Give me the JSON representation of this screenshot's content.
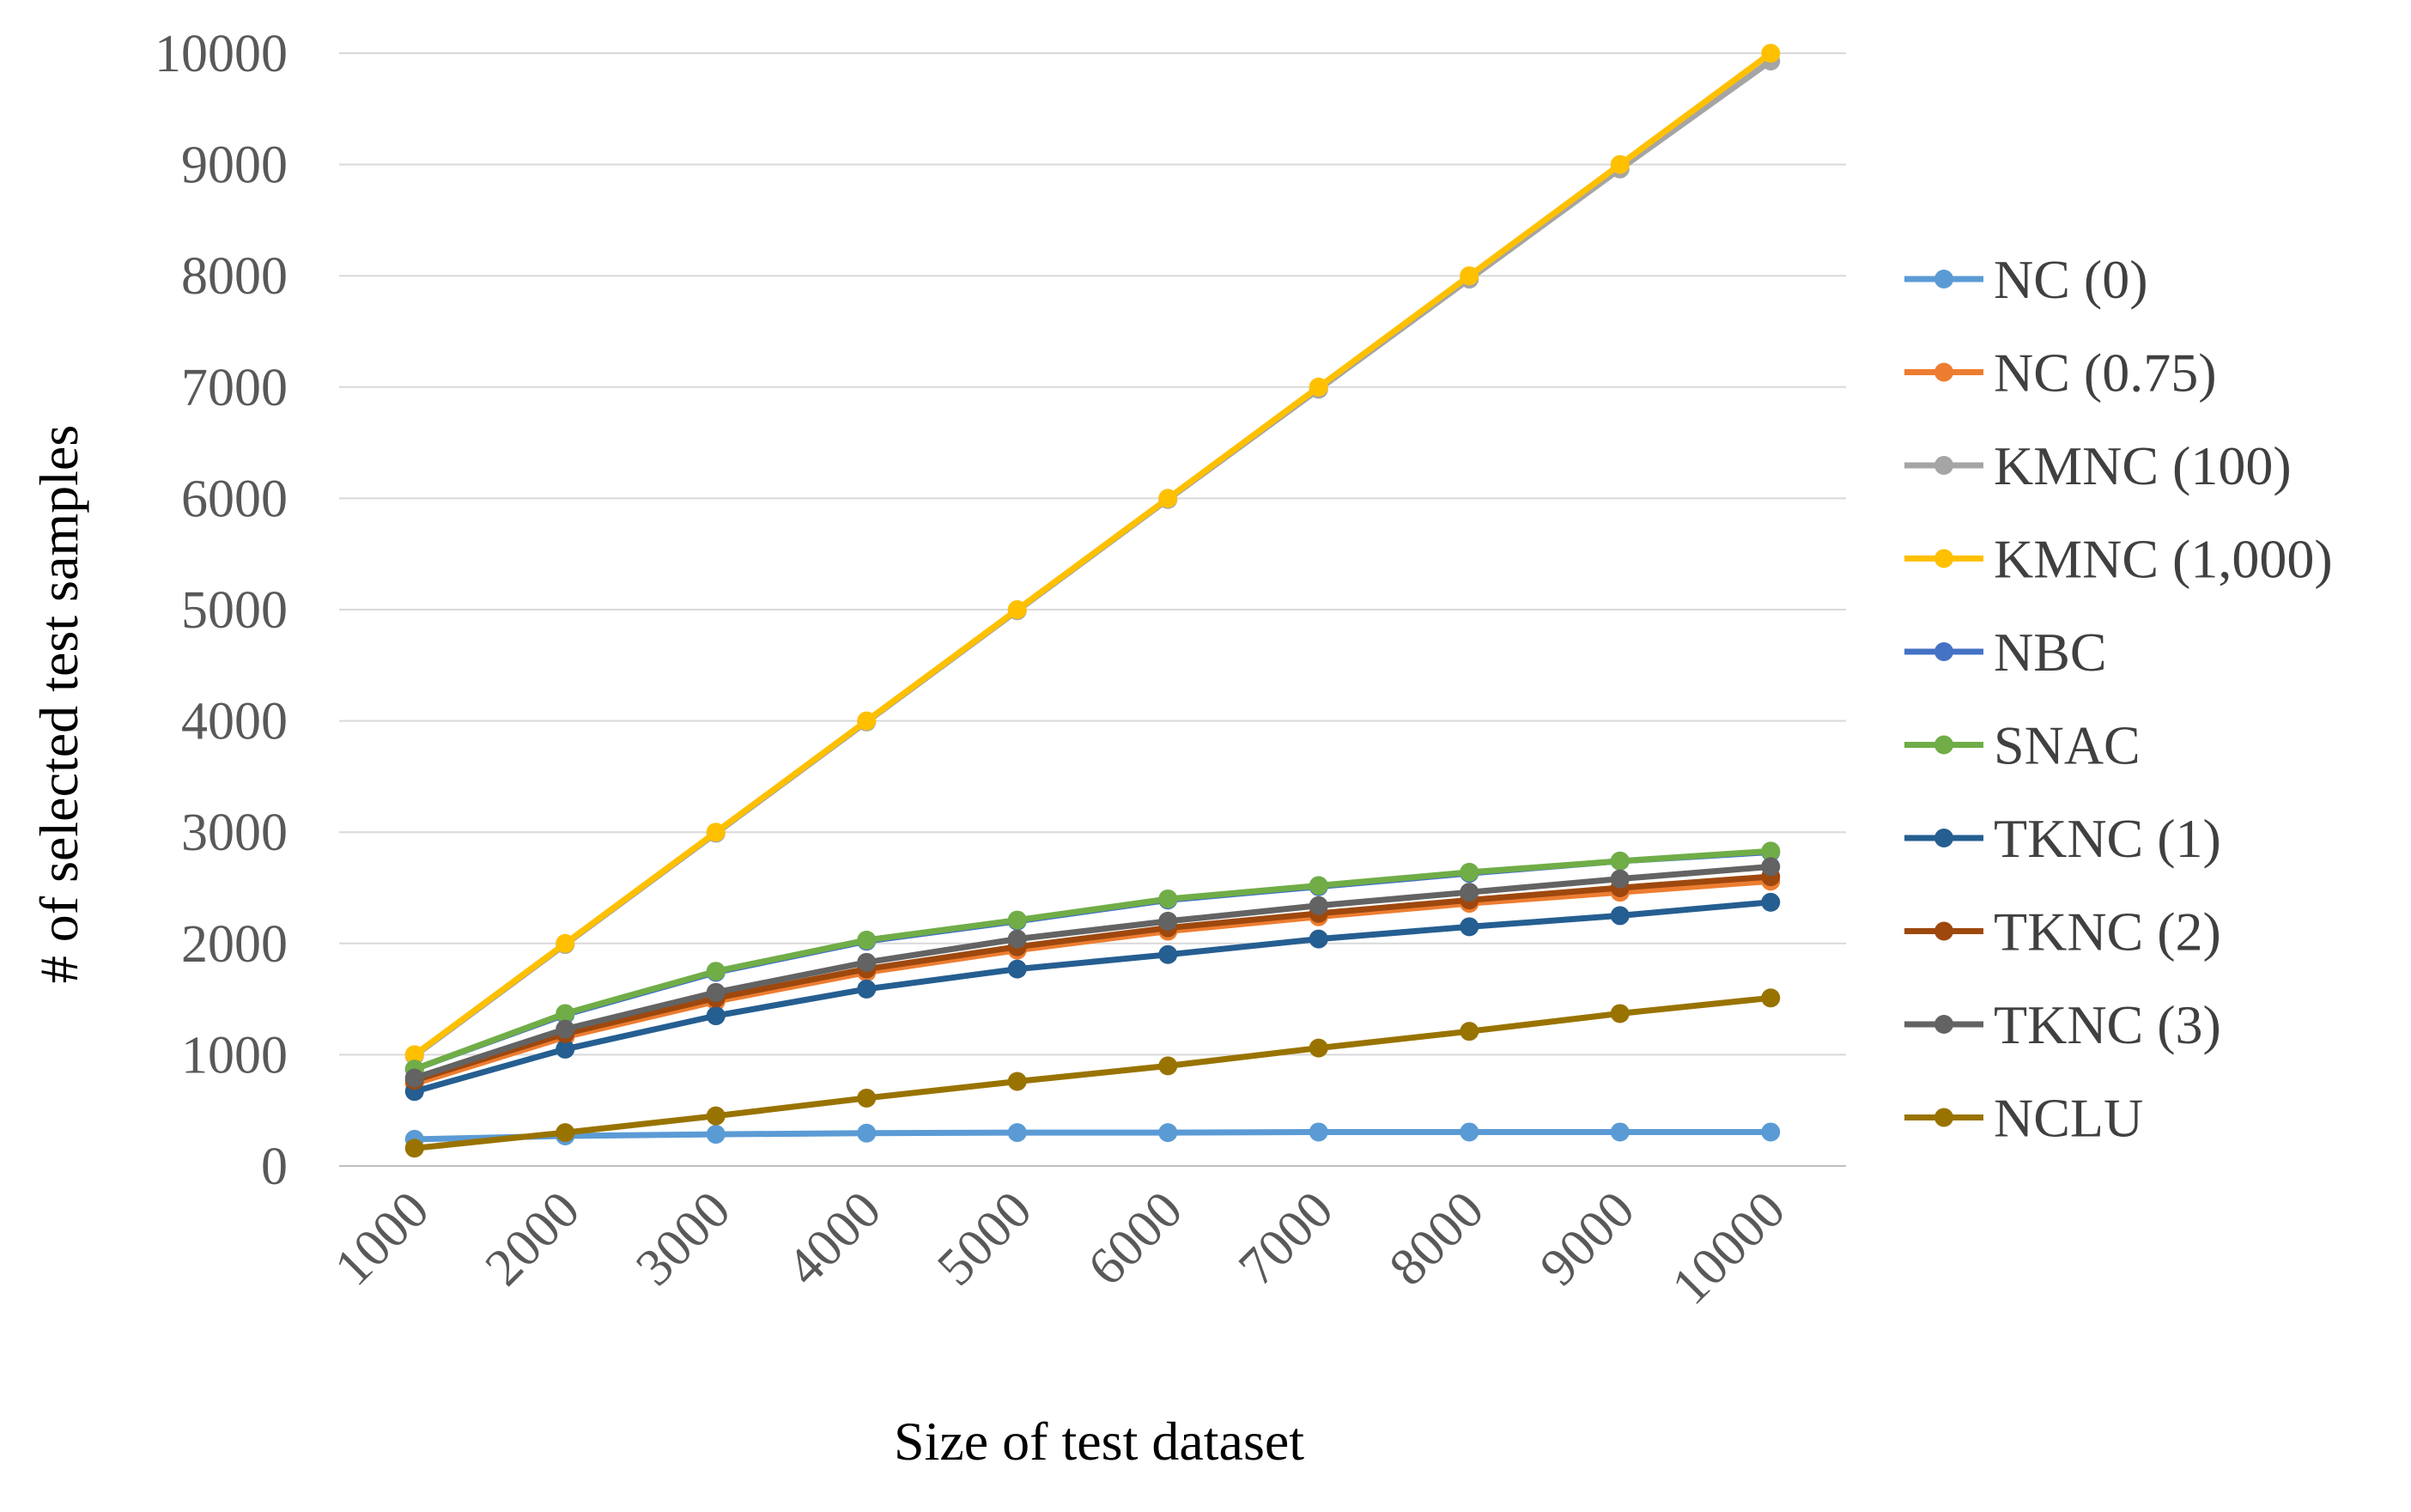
{
  "chart_data": {
    "type": "line",
    "title": "",
    "xlabel": "Size of test dataset",
    "ylabel": "# of selected test samples",
    "categories": [
      "1000",
      "2000",
      "3000",
      "4000",
      "5000",
      "6000",
      "7000",
      "8000",
      "9000",
      "10000"
    ],
    "ylim": [
      0,
      10000
    ],
    "yticks": [
      "0",
      "1000",
      "2000",
      "3000",
      "4000",
      "5000",
      "6000",
      "7000",
      "8000",
      "9000",
      "10000"
    ],
    "grid": true,
    "legend_position": "right",
    "series": [
      {
        "name": "NC (0)",
        "color": "#5b9bd5",
        "values": [
          240,
          270,
          285,
          295,
          300,
          300,
          305,
          305,
          305,
          305
        ]
      },
      {
        "name": "NC (0.75)",
        "color": "#ed7d31",
        "values": [
          740,
          1160,
          1480,
          1740,
          1940,
          2110,
          2240,
          2360,
          2460,
          2560
        ]
      },
      {
        "name": "KMNC (100)",
        "color": "#a5a5a5",
        "values": [
          990,
          1990,
          2990,
          3990,
          4990,
          5990,
          6980,
          7970,
          8960,
          9930
        ]
      },
      {
        "name": "KMNC (1,000)",
        "color": "#ffc000",
        "values": [
          1000,
          2000,
          3000,
          4000,
          5000,
          6000,
          7000,
          8000,
          9000,
          10000
        ]
      },
      {
        "name": "NBC",
        "color": "#4472c4",
        "values": [
          870,
          1360,
          1740,
          2020,
          2200,
          2390,
          2510,
          2630,
          2740,
          2820
        ]
      },
      {
        "name": "SNAC",
        "color": "#70ad47",
        "values": [
          870,
          1370,
          1750,
          2030,
          2210,
          2400,
          2520,
          2640,
          2740,
          2830
        ]
      },
      {
        "name": "TKNC (1)",
        "color": "#255e91",
        "values": [
          670,
          1050,
          1350,
          1590,
          1770,
          1900,
          2040,
          2150,
          2250,
          2370
        ]
      },
      {
        "name": "TKNC (2)",
        "color": "#9e480e",
        "values": [
          770,
          1190,
          1510,
          1770,
          1970,
          2140,
          2270,
          2390,
          2500,
          2600
        ]
      },
      {
        "name": "TKNC (3)",
        "color": "#636363",
        "values": [
          790,
          1230,
          1560,
          1830,
          2040,
          2200,
          2340,
          2460,
          2580,
          2690
        ]
      },
      {
        "name": "NCLU",
        "color": "#997300",
        "values": [
          160,
          300,
          450,
          610,
          760,
          900,
          1060,
          1210,
          1370,
          1510
        ]
      }
    ]
  }
}
